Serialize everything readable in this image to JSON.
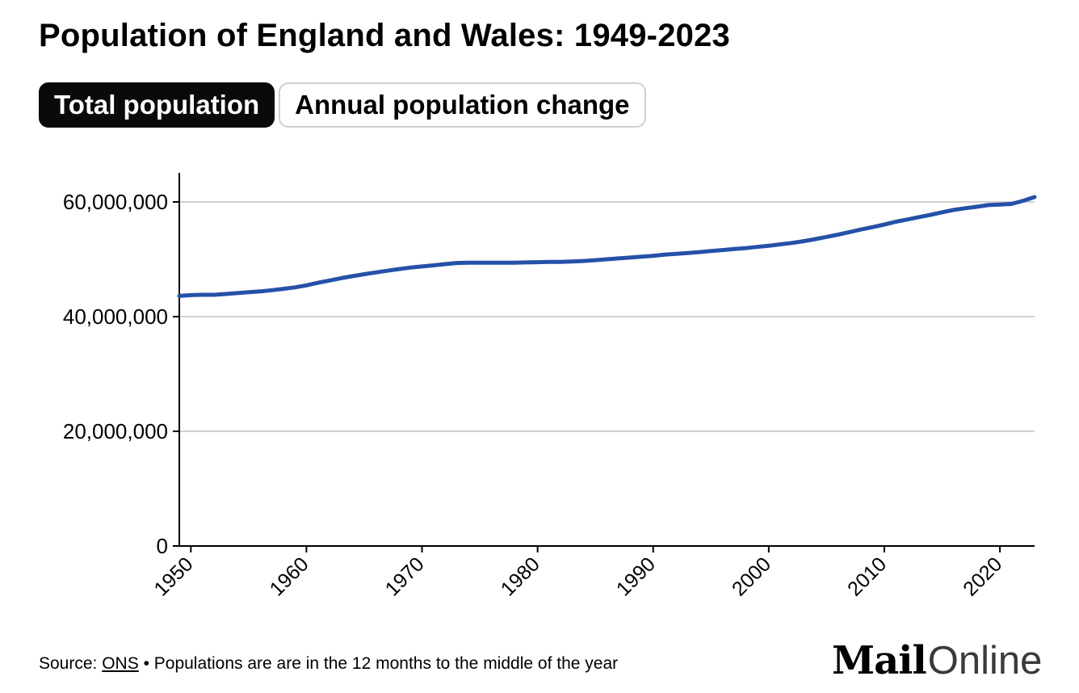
{
  "title": "Population of England and Wales: 1949-2023",
  "tabs": [
    {
      "label": "Total population",
      "active": true
    },
    {
      "label": "Annual population change",
      "active": false
    }
  ],
  "footer": {
    "source_prefix": "Source:",
    "source_link": "ONS",
    "note": "• Populations are are in the 12 months to the middle of the year"
  },
  "logo": {
    "part1": "Mail",
    "part2": "Online"
  },
  "colors": {
    "line": "#2451a8",
    "grid": "#d0d0d0",
    "axis": "#000000",
    "tab_active_bg": "#0a0a0a",
    "tab_inactive_border": "#cfcfcf"
  },
  "chart_data": {
    "type": "line",
    "title": "Population of England and Wales: 1949-2023",
    "xlabel": "",
    "ylabel": "",
    "xlim": [
      1949,
      2023
    ],
    "ylim": [
      0,
      65000000
    ],
    "x_ticks": [
      1950,
      1960,
      1970,
      1980,
      1990,
      2000,
      2010,
      2020
    ],
    "x_tick_labels": [
      "1950",
      "1960",
      "1970",
      "1980",
      "1990",
      "2000",
      "2010",
      "2020"
    ],
    "y_ticks": [
      0,
      20000000,
      40000000,
      60000000
    ],
    "y_tick_labels": [
      "0",
      "20,000,000",
      "40,000,000",
      "60,000,000"
    ],
    "grid": true,
    "series": [
      {
        "x": [
          1949,
          1950,
          1951,
          1952,
          1953,
          1954,
          1955,
          1956,
          1957,
          1958,
          1959,
          1960,
          1961,
          1962,
          1963,
          1964,
          1965,
          1966,
          1967,
          1968,
          1969,
          1970,
          1971,
          1972,
          1973,
          1974,
          1975,
          1976,
          1977,
          1978,
          1979,
          1980,
          1981,
          1982,
          1983,
          1984,
          1985,
          1986,
          1987,
          1988,
          1989,
          1990,
          1991,
          1992,
          1993,
          1994,
          1995,
          1996,
          1997,
          1998,
          1999,
          2000,
          2001,
          2002,
          2003,
          2004,
          2005,
          2006,
          2007,
          2008,
          2009,
          2010,
          2011,
          2012,
          2013,
          2014,
          2015,
          2016,
          2017,
          2018,
          2019,
          2020,
          2021,
          2022,
          2023
        ],
        "values": [
          43600000,
          43750000,
          43800000,
          43800000,
          43950000,
          44100000,
          44250000,
          44400000,
          44600000,
          44850000,
          45100000,
          45450000,
          45900000,
          46300000,
          46700000,
          47050000,
          47400000,
          47700000,
          48000000,
          48300000,
          48550000,
          48750000,
          48950000,
          49150000,
          49350000,
          49400000,
          49400000,
          49400000,
          49400000,
          49400000,
          49450000,
          49500000,
          49550000,
          49550000,
          49600000,
          49700000,
          49850000,
          50000000,
          50150000,
          50300000,
          50450000,
          50600000,
          50800000,
          50950000,
          51100000,
          51250000,
          51450000,
          51600000,
          51800000,
          51950000,
          52150000,
          52350000,
          52600000,
          52850000,
          53150000,
          53500000,
          53900000,
          54300000,
          54750000,
          55200000,
          55600000,
          56050000,
          56550000,
          56950000,
          57350000,
          57750000,
          58200000,
          58600000,
          58900000,
          59150000,
          59450000,
          59550000,
          59650000,
          60200000,
          60850000
        ]
      }
    ]
  }
}
